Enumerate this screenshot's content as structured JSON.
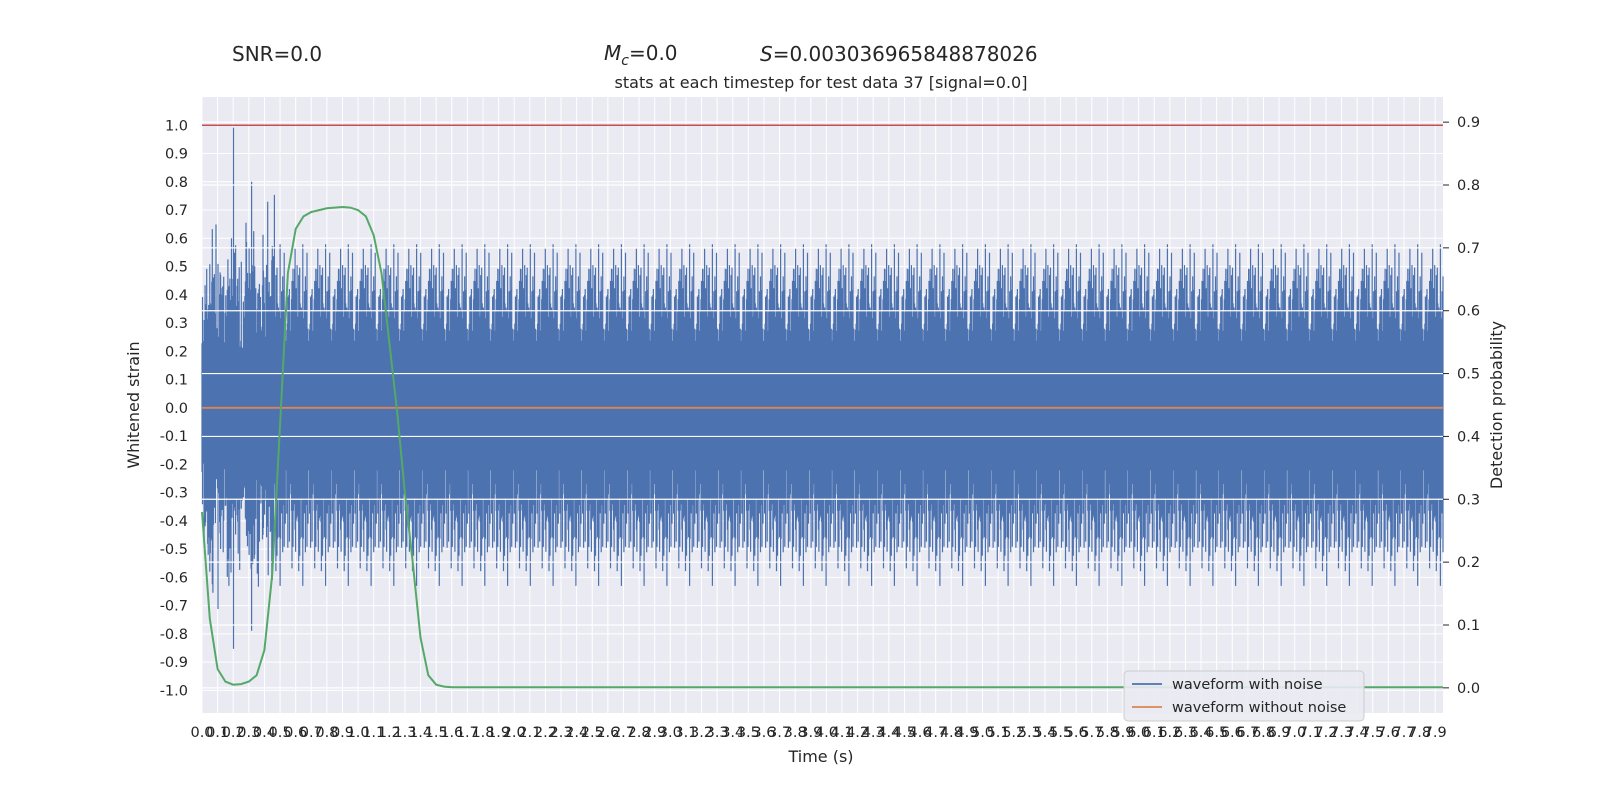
{
  "header": {
    "snr": "SNR=0.0",
    "mc_sym": "M",
    "mc_sub": "c",
    "mc_val": "=0.0",
    "s_sym": "S",
    "s_val": "=0.003036965848878026",
    "subtitle": "stats at each timestep for test data 37 [signal=0.0]"
  },
  "chart_data": {
    "type": "line",
    "title": "stats at each timestep for test data 37 [signal=0.0]",
    "xlabel": "Time (s)",
    "ylabel": "Whitened strain",
    "ylabel_right": "Detection probability",
    "xlim": [
      0,
      7.95
    ],
    "ylim": [
      -1.08,
      1.1
    ],
    "ylim_right": [
      -0.04,
      0.94
    ],
    "x_ticks": [
      0.0,
      0.1,
      0.2,
      0.3,
      0.4,
      0.5,
      0.6,
      0.7,
      0.8,
      0.9,
      1.0,
      1.1,
      1.2,
      1.3,
      1.4,
      1.5,
      1.6,
      1.7,
      1.8,
      1.9,
      2.0,
      2.1,
      2.2,
      2.3,
      2.4,
      2.5,
      2.6,
      2.7,
      2.8,
      2.9,
      3.0,
      3.1,
      3.2,
      3.3,
      3.4,
      3.5,
      3.6,
      3.7,
      3.8,
      3.9,
      4.0,
      4.1,
      4.2,
      4.3,
      4.4,
      4.5,
      4.6,
      4.7,
      4.8,
      4.9,
      5.0,
      5.1,
      5.2,
      5.3,
      5.4,
      5.5,
      5.6,
      5.7,
      5.8,
      5.9,
      6.0,
      6.1,
      6.2,
      6.3,
      6.4,
      6.5,
      6.6,
      6.7,
      6.8,
      6.9,
      7.0,
      7.1,
      7.2,
      7.3,
      7.4,
      7.5,
      7.6,
      7.7,
      7.8,
      7.9
    ],
    "y_ticks": [
      -1.0,
      -0.9,
      -0.8,
      -0.7,
      -0.6,
      -0.5,
      -0.4,
      -0.3,
      -0.2,
      -0.1,
      0.0,
      0.1,
      0.2,
      0.3,
      0.4,
      0.5,
      0.6,
      0.7,
      0.8,
      0.9,
      1.0
    ],
    "y_ticks_right": [
      0.0,
      0.1,
      0.2,
      0.3,
      0.4,
      0.5,
      0.6,
      0.7,
      0.8,
      0.9
    ],
    "threshold": {
      "y": 1.0,
      "color": "#c44e52"
    },
    "grid": true,
    "legend_position": "lower-right",
    "series": [
      {
        "name": "waveform with noise",
        "color": "#4c72b0",
        "kind": "noise",
        "envelope": 0.55,
        "max_abs": 1.0
      },
      {
        "name": "waveform without noise",
        "color": "#dd8452",
        "x": [
          0.0,
          7.95
        ],
        "y": [
          0.0,
          0.0
        ]
      },
      {
        "color": "#55a868",
        "axis": "right",
        "x": [
          0.0,
          0.05,
          0.1,
          0.15,
          0.2,
          0.25,
          0.3,
          0.35,
          0.4,
          0.45,
          0.5,
          0.55,
          0.6,
          0.65,
          0.7,
          0.75,
          0.8,
          0.85,
          0.9,
          0.95,
          1.0,
          1.05,
          1.1,
          1.15,
          1.2,
          1.25,
          1.3,
          1.35,
          1.4,
          1.45,
          1.5,
          1.55,
          1.6,
          1.65,
          1.7,
          1.75,
          1.8,
          1.9,
          2.0,
          3.0,
          4.0,
          5.0,
          6.0,
          7.0,
          7.95
        ],
        "y": [
          0.28,
          0.11,
          0.03,
          0.01,
          0.005,
          0.006,
          0.01,
          0.02,
          0.06,
          0.18,
          0.42,
          0.66,
          0.73,
          0.75,
          0.757,
          0.76,
          0.763,
          0.764,
          0.765,
          0.764,
          0.76,
          0.75,
          0.72,
          0.66,
          0.55,
          0.44,
          0.31,
          0.2,
          0.08,
          0.02,
          0.005,
          0.002,
          0.001,
          0.001,
          0.001,
          0.001,
          0.001,
          0.001,
          0.001,
          0.001,
          0.001,
          0.001,
          0.001,
          0.001,
          0.001
        ]
      }
    ]
  }
}
